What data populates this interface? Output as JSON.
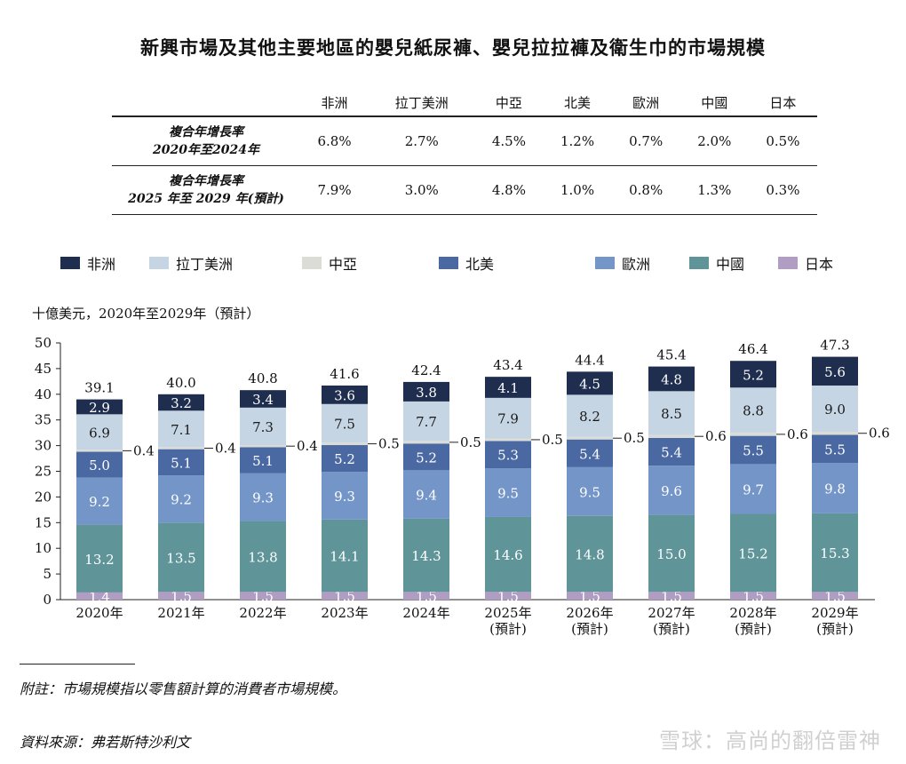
{
  "title": "新興市場及其他主要地區的嬰兒紙尿褲、嬰兒拉拉褲及衛生巾的市場規模",
  "cagr_table": {
    "headers": [
      "非洲",
      "拉丁美洲",
      "中亞",
      "北美",
      "歐洲",
      "中國",
      "日本"
    ],
    "rows": [
      {
        "label_line1": "複合年增長率",
        "label_line2": "2020年至2024年",
        "values": [
          "6.8%",
          "2.7%",
          "4.5%",
          "1.2%",
          "0.7%",
          "2.0%",
          "0.5%"
        ]
      },
      {
        "label_line1": "複合年增長率",
        "label_line2": "2025 年至 2029 年(預計)",
        "values": [
          "7.9%",
          "3.0%",
          "4.8%",
          "1.0%",
          "0.8%",
          "1.3%",
          "0.3%"
        ]
      }
    ]
  },
  "unit_label": "十億美元，2020年至2029年（預計）",
  "note": "附註：市場規模指以零售額計算的消費者市場規模。",
  "source": "資料來源：弗若斯特沙利文",
  "watermark": "雪球：高尚的翻倍雷神",
  "colors": {
    "africa": "#1f2d4e",
    "latam": "#c5d5e4",
    "central_asia": "#dcdcd6",
    "north_america": "#4a69a3",
    "europe": "#7495c8",
    "china": "#5f9498",
    "japan": "#b19cc4"
  },
  "chart_data": {
    "type": "bar",
    "stacked": true,
    "categories": [
      "2020年",
      "2021年",
      "2022年",
      "2023年",
      "2024年",
      "2025年",
      "2026年",
      "2027年",
      "2028年",
      "2029年"
    ],
    "category_sublabels": [
      "",
      "",
      "",
      "",
      "",
      "(預計)",
      "(預計)",
      "(預計)",
      "(預計)",
      "(預計)"
    ],
    "series": [
      {
        "name": "日本",
        "key": "japan",
        "values": [
          1.4,
          1.5,
          1.5,
          1.5,
          1.5,
          1.5,
          1.5,
          1.5,
          1.5,
          1.5
        ],
        "labels": [
          "1.4",
          "1.5",
          "1.5",
          "1.5",
          "1.5",
          "1.5",
          "1.5",
          "1.5",
          "1.5",
          "1.5"
        ]
      },
      {
        "name": "中國",
        "key": "china",
        "values": [
          13.2,
          13.5,
          13.8,
          14.1,
          14.3,
          14.6,
          14.8,
          15.0,
          15.2,
          15.3
        ],
        "labels": [
          "13.2",
          "13.5",
          "13.8",
          "14.1",
          "14.3",
          "14.6",
          "14.8",
          "15.0",
          "15.2",
          "15.3"
        ]
      },
      {
        "name": "歐洲",
        "key": "europe",
        "values": [
          9.2,
          9.2,
          9.3,
          9.3,
          9.4,
          9.5,
          9.5,
          9.6,
          9.7,
          9.8
        ],
        "labels": [
          "9.2",
          "9.2",
          "9.3",
          "9.3",
          "9.4",
          "9.5",
          "9.5",
          "9.6",
          "9.7",
          "9.8"
        ]
      },
      {
        "name": "北美",
        "key": "north_america",
        "values": [
          5.0,
          5.1,
          5.1,
          5.2,
          5.2,
          5.3,
          5.4,
          5.4,
          5.5,
          5.5
        ],
        "labels": [
          "5.0",
          "5.1",
          "5.1",
          "5.2",
          "5.2",
          "5.3",
          "5.4",
          "5.4",
          "5.5",
          "5.5"
        ]
      },
      {
        "name": "中亞",
        "key": "central_asia",
        "values": [
          0.4,
          0.4,
          0.4,
          0.5,
          0.5,
          0.5,
          0.5,
          0.6,
          0.6,
          0.6
        ],
        "labels": [
          "0.4",
          "0.4",
          "0.4",
          "0.5",
          "0.5",
          "0.5",
          "0.5",
          "0.6",
          "0.6",
          "0.6"
        ]
      },
      {
        "name": "拉丁美洲",
        "key": "latam",
        "values": [
          6.9,
          7.1,
          7.3,
          7.5,
          7.7,
          7.9,
          8.2,
          8.5,
          8.8,
          9.0
        ],
        "labels": [
          "6.9",
          "7.1",
          "7.3",
          "7.5",
          "7.7",
          "7.9",
          "8.2",
          "8.5",
          "8.8",
          "9.0"
        ]
      },
      {
        "name": "非洲",
        "key": "africa",
        "values": [
          2.9,
          3.2,
          3.4,
          3.6,
          3.8,
          4.1,
          4.5,
          4.8,
          5.2,
          5.6
        ],
        "labels": [
          "2.9",
          "3.2",
          "3.4",
          "3.6",
          "3.8",
          "4.1",
          "4.5",
          "4.8",
          "5.2",
          "5.6"
        ]
      }
    ],
    "totals": [
      "39.1",
      "40.0",
      "40.8",
      "41.6",
      "42.4",
      "43.4",
      "44.4",
      "45.4",
      "46.4",
      "47.3"
    ],
    "legend_order": [
      "非洲",
      "拉丁美洲",
      "中亞",
      "北美",
      "歐洲",
      "中國",
      "日本"
    ],
    "ylim": [
      0,
      50
    ],
    "yticks": [
      0,
      5,
      10,
      15,
      20,
      25,
      30,
      35,
      40,
      45,
      50
    ],
    "ylabel": "十億美元"
  }
}
